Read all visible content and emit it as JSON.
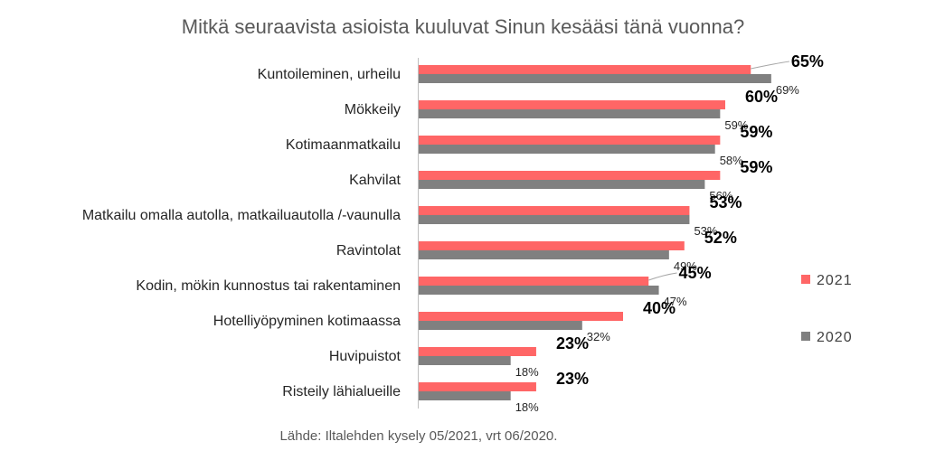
{
  "chart_data": {
    "type": "bar",
    "orientation": "horizontal",
    "title": "Mitkä seuraavista asioista kuuluvat Sinun kesääsi tänä vuonna?",
    "categories": [
      "Kuntoileminen, urheilu",
      "Mökkeily",
      "Kotimaanmatkailu",
      "Kahvilat",
      "Matkailu omalla autolla, matkailuautolla /-vaunulla",
      "Ravintolat",
      "Kodin, mökin kunnostus tai rakentaminen",
      "Hotelliyöpyminen kotimaassa",
      "Huvipuistot",
      "Risteily lähialueille"
    ],
    "series": [
      {
        "name": "2021",
        "color": "#FF6666",
        "values": [
          65,
          60,
          59,
          59,
          53,
          52,
          45,
          40,
          23,
          23
        ]
      },
      {
        "name": "2020",
        "color": "#808080",
        "values": [
          69,
          59,
          58,
          56,
          53,
          49,
          47,
          32,
          18,
          18
        ]
      }
    ],
    "value_suffix": "%",
    "xlim": [
      0,
      100
    ],
    "grid": false,
    "legend": "right",
    "source": "Lähde: Iltalehden kysely 05/2021,  vrt 06/2020."
  }
}
